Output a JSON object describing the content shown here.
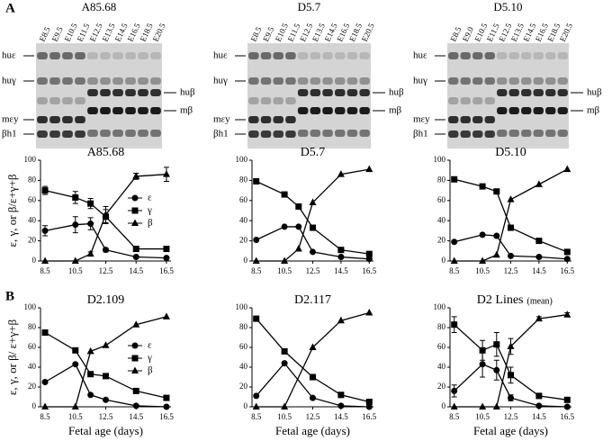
{
  "panels": [
    "A",
    "B"
  ],
  "gels": [
    {
      "title": "A85.68",
      "lanes": [
        "E8.5",
        "E9.5",
        "E10.5",
        "E11.5",
        "E12.5",
        "E13.5",
        "E14.5",
        "E16.5",
        "E18.5",
        "E20.5"
      ],
      "left_labels": [
        "huε",
        "huγ",
        "mεy",
        "βh1"
      ],
      "right_labels": [
        "huβ",
        "mβ"
      ]
    },
    {
      "title": "D5.7",
      "lanes": [
        "E8.5",
        "E9.5",
        "E10.5",
        "E11.5",
        "E12.5",
        "E13.5",
        "E14.5",
        "E16.5",
        "E18.5",
        "E20.5"
      ],
      "left_labels": [
        "huε",
        "huγ",
        "mεy",
        "βh1"
      ],
      "right_labels": [
        "huβ",
        "mβ"
      ]
    },
    {
      "title": "D5.10",
      "lanes": [
        "E8.5",
        "E9.0",
        "E10.5",
        "E11.5",
        "E12.5",
        "E13.5",
        "E14.5",
        "E16.5",
        "E18.5",
        "E20.5"
      ],
      "left_labels": [
        "huε",
        "huγ",
        "mεy",
        "βh1"
      ],
      "right_labels": [
        "huβ",
        "mβ"
      ]
    }
  ],
  "chart_data": [
    {
      "type": "line",
      "title": "A85.68",
      "y_label": "ε, γ, or β/ε+γ+β",
      "legend": true,
      "x": [
        8.5,
        10.5,
        11.5,
        12.5,
        14.5,
        16.5
      ],
      "xlim": [
        8.2,
        16.8
      ],
      "xticks": [
        8.5,
        10.5,
        12.5,
        14.5,
        16.5
      ],
      "ylim": [
        0,
        100
      ],
      "yticks": [
        0,
        20,
        40,
        60,
        80,
        100
      ],
      "series": [
        {
          "name": "ε",
          "marker": "circle",
          "color": "#000000",
          "values": [
            30,
            36,
            37,
            11,
            4,
            3
          ],
          "errors": [
            5,
            8,
            6,
            2,
            1,
            1
          ]
        },
        {
          "name": "γ",
          "marker": "square",
          "color": "#000000",
          "values": [
            70,
            63,
            57,
            44,
            12,
            12
          ],
          "errors": [
            4,
            6,
            5,
            7,
            1,
            1
          ]
        },
        {
          "name": "β",
          "marker": "triangle",
          "color": "#000000",
          "values": [
            0,
            0,
            7,
            46,
            84,
            86
          ],
          "errors": [
            0,
            0,
            2,
            8,
            3,
            7
          ]
        }
      ]
    },
    {
      "type": "line",
      "title": "D5.7",
      "legend": false,
      "x": [
        8.5,
        10.5,
        11.5,
        12.5,
        14.5,
        16.5
      ],
      "xlim": [
        8.2,
        16.8
      ],
      "xticks": [
        8.5,
        10.5,
        12.5,
        14.5,
        16.5
      ],
      "ylim": [
        0,
        100
      ],
      "yticks": [
        0,
        20,
        40,
        60,
        80,
        100
      ],
      "series": [
        {
          "name": "ε",
          "marker": "circle",
          "color": "#000000",
          "values": [
            21,
            34,
            34,
            9,
            4,
            2
          ]
        },
        {
          "name": "γ",
          "marker": "square",
          "color": "#000000",
          "values": [
            79,
            66,
            54,
            33,
            11,
            7
          ]
        },
        {
          "name": "β",
          "marker": "triangle",
          "color": "#000000",
          "values": [
            0,
            0,
            12,
            58,
            86,
            91
          ]
        }
      ]
    },
    {
      "type": "line",
      "title": "D5.10",
      "legend": false,
      "x": [
        8.5,
        10.5,
        11.5,
        12.5,
        14.5,
        16.5
      ],
      "xlim": [
        8.2,
        16.8
      ],
      "xticks": [
        8.5,
        10.5,
        12.5,
        14.5,
        16.5
      ],
      "ylim": [
        0,
        100
      ],
      "yticks": [
        0,
        20,
        40,
        60,
        80,
        100
      ],
      "series": [
        {
          "name": "ε",
          "marker": "circle",
          "color": "#000000",
          "values": [
            19,
            26,
            25,
            5,
            4,
            2
          ]
        },
        {
          "name": "γ",
          "marker": "square",
          "color": "#000000",
          "values": [
            81,
            74,
            69,
            33,
            20,
            9
          ]
        },
        {
          "name": "β",
          "marker": "triangle",
          "color": "#000000",
          "values": [
            0,
            0,
            6,
            61,
            76,
            91
          ]
        }
      ]
    },
    {
      "type": "line",
      "title": "D2.109",
      "y_label": "ε, γ, or β/ ε+γ+β",
      "x_label": "Fetal age (days)",
      "legend": true,
      "x": [
        8.5,
        10.5,
        11.5,
        12.5,
        14.5,
        16.5
      ],
      "xlim": [
        8.2,
        16.8
      ],
      "xticks": [
        8.5,
        10.5,
        12.5,
        14.5,
        16.5
      ],
      "ylim": [
        0,
        100
      ],
      "yticks": [
        0,
        20,
        40,
        60,
        80,
        100
      ],
      "series": [
        {
          "name": "ε",
          "marker": "circle",
          "color": "#000000",
          "values": [
            25,
            43,
            12,
            7,
            1,
            0
          ]
        },
        {
          "name": "γ",
          "marker": "square",
          "color": "#000000",
          "values": [
            75,
            57,
            33,
            31,
            16,
            9
          ]
        },
        {
          "name": "β",
          "marker": "triangle",
          "color": "#000000",
          "values": [
            0,
            0,
            56,
            62,
            83,
            91
          ]
        }
      ]
    },
    {
      "type": "line",
      "title": "D2.117",
      "x_label": "Fetal age (days)",
      "legend": false,
      "x": [
        8.5,
        10.5,
        12.5,
        14.5,
        16.5
      ],
      "xlim": [
        8.2,
        16.8
      ],
      "xticks": [
        8.5,
        10.5,
        12.5,
        14.5,
        16.5
      ],
      "ylim": [
        0,
        100
      ],
      "yticks": [
        0,
        20,
        40,
        60,
        80,
        100
      ],
      "series": [
        {
          "name": "ε",
          "marker": "circle",
          "color": "#000000",
          "values": [
            11,
            44,
            9,
            1,
            0
          ]
        },
        {
          "name": "γ",
          "marker": "square",
          "color": "#000000",
          "values": [
            89,
            56,
            30,
            12,
            5
          ]
        },
        {
          "name": "β",
          "marker": "triangle",
          "color": "#000000",
          "values": [
            0,
            0,
            60,
            87,
            95
          ]
        }
      ]
    },
    {
      "type": "line",
      "title": "D2 Lines",
      "subtitle": "(mean)",
      "x_label": "Fetal age (days)",
      "legend": false,
      "x": [
        8.5,
        10.5,
        11.5,
        12.5,
        14.5,
        16.5
      ],
      "xlim": [
        8.2,
        16.8
      ],
      "xticks": [
        8.5,
        10.5,
        12.5,
        14.5,
        16.5
      ],
      "ylim": [
        0,
        100
      ],
      "yticks": [
        0,
        20,
        40,
        60,
        80,
        100
      ],
      "series": [
        {
          "name": "ε",
          "marker": "circle",
          "color": "#000000",
          "values": [
            16,
            43,
            37,
            9,
            1,
            0
          ],
          "errors": [
            6,
            13,
            10,
            3,
            1,
            1
          ]
        },
        {
          "name": "γ",
          "marker": "square",
          "color": "#000000",
          "values": [
            83,
            57,
            63,
            32,
            11,
            7
          ],
          "errors": [
            8,
            10,
            12,
            8,
            2,
            2
          ]
        },
        {
          "name": "β",
          "marker": "triangle",
          "color": "#000000",
          "values": [
            0,
            0,
            0,
            61,
            89,
            93
          ],
          "errors": [
            0,
            0,
            0,
            8,
            2,
            2
          ]
        }
      ]
    }
  ]
}
